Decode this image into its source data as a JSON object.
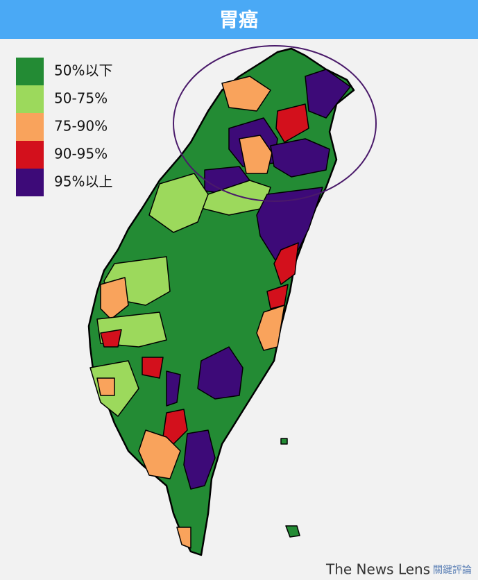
{
  "header": {
    "title": "胃癌"
  },
  "legend": {
    "items": [
      {
        "label": "50%以下",
        "color": "#238b34"
      },
      {
        "label": "50-75%",
        "color": "#9cd95c"
      },
      {
        "label": "75-90%",
        "color": "#f9a35c"
      },
      {
        "label": "90-95%",
        "color": "#d3101c"
      },
      {
        "label": "95%以上",
        "color": "#3d0a78"
      }
    ]
  },
  "footer": {
    "brand": "The News Lens",
    "brand_zh": "關鍵評論"
  }
}
